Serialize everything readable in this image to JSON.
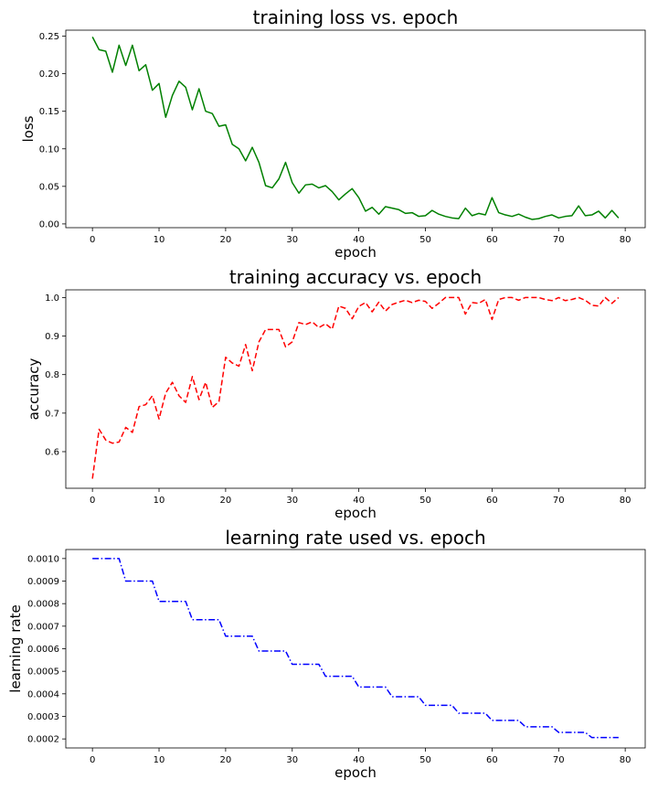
{
  "chart_data": [
    {
      "type": "line",
      "title": "training loss vs. epoch",
      "xlabel": "epoch",
      "ylabel": "loss",
      "color": "#008000",
      "linestyle": "solid",
      "xlim": [
        -4,
        83
      ],
      "ylim": [
        -0.005,
        0.258
      ],
      "xticks": [
        0,
        10,
        20,
        30,
        40,
        50,
        60,
        70,
        80
      ],
      "xtick_labels": [
        "0",
        "10",
        "20",
        "30",
        "40",
        "50",
        "60",
        "70",
        "80"
      ],
      "yticks": [
        0.0,
        0.05,
        0.1,
        0.15,
        0.2,
        0.25
      ],
      "ytick_labels": [
        "0.00",
        "0.05",
        "0.10",
        "0.15",
        "0.20",
        "0.25"
      ],
      "series": [
        {
          "name": "loss",
          "x": [
            0,
            1,
            2,
            3,
            4,
            5,
            6,
            7,
            8,
            9,
            10,
            11,
            12,
            13,
            14,
            15,
            16,
            17,
            18,
            19,
            20,
            21,
            22,
            23,
            24,
            25,
            26,
            27,
            28,
            29,
            30,
            31,
            32,
            33,
            34,
            35,
            36,
            37,
            38,
            39,
            40,
            41,
            42,
            43,
            44,
            45,
            46,
            47,
            48,
            49,
            50,
            51,
            52,
            53,
            54,
            55,
            56,
            57,
            58,
            59,
            60,
            61,
            62,
            63,
            64,
            65,
            66,
            67,
            68,
            69,
            70,
            71,
            72,
            73,
            74,
            75,
            76,
            77,
            78,
            79
          ],
          "values": [
            0.249,
            0.232,
            0.23,
            0.202,
            0.238,
            0.211,
            0.238,
            0.204,
            0.212,
            0.178,
            0.187,
            0.142,
            0.171,
            0.19,
            0.182,
            0.152,
            0.18,
            0.15,
            0.147,
            0.13,
            0.132,
            0.106,
            0.1,
            0.084,
            0.102,
            0.082,
            0.051,
            0.048,
            0.06,
            0.082,
            0.055,
            0.041,
            0.052,
            0.053,
            0.048,
            0.051,
            0.043,
            0.032,
            0.04,
            0.047,
            0.035,
            0.017,
            0.022,
            0.013,
            0.023,
            0.021,
            0.019,
            0.014,
            0.015,
            0.01,
            0.011,
            0.018,
            0.013,
            0.01,
            0.008,
            0.007,
            0.021,
            0.011,
            0.014,
            0.012,
            0.035,
            0.015,
            0.012,
            0.01,
            0.013,
            0.009,
            0.006,
            0.007,
            0.01,
            0.012,
            0.008,
            0.01,
            0.011,
            0.024,
            0.011,
            0.012,
            0.017,
            0.008,
            0.018,
            0.008
          ]
        }
      ]
    },
    {
      "type": "line",
      "title": "training accuracy vs. epoch",
      "xlabel": "epoch",
      "ylabel": "accuracy",
      "color": "#ff0000",
      "linestyle": "dashed",
      "xlim": [
        -4,
        83
      ],
      "ylim": [
        0.505,
        1.02
      ],
      "xticks": [
        0,
        10,
        20,
        30,
        40,
        50,
        60,
        70,
        80
      ],
      "xtick_labels": [
        "0",
        "10",
        "20",
        "30",
        "40",
        "50",
        "60",
        "70",
        "80"
      ],
      "yticks": [
        0.6,
        0.7,
        0.8,
        0.9,
        1.0
      ],
      "ytick_labels": [
        "0.6",
        "0.7",
        "0.8",
        "0.9",
        "1.0"
      ],
      "series": [
        {
          "name": "accuracy",
          "x": [
            0,
            1,
            2,
            3,
            4,
            5,
            6,
            7,
            8,
            9,
            10,
            11,
            12,
            13,
            14,
            15,
            16,
            17,
            18,
            19,
            20,
            21,
            22,
            23,
            24,
            25,
            26,
            27,
            28,
            29,
            30,
            31,
            32,
            33,
            34,
            35,
            36,
            37,
            38,
            39,
            40,
            41,
            42,
            43,
            44,
            45,
            46,
            47,
            48,
            49,
            50,
            51,
            52,
            53,
            54,
            55,
            56,
            57,
            58,
            59,
            60,
            61,
            62,
            63,
            64,
            65,
            66,
            67,
            68,
            69,
            70,
            71,
            72,
            73,
            74,
            75,
            76,
            77,
            78,
            79
          ],
          "values": [
            0.53,
            0.658,
            0.63,
            0.622,
            0.625,
            0.663,
            0.65,
            0.717,
            0.722,
            0.745,
            0.685,
            0.752,
            0.78,
            0.745,
            0.728,
            0.795,
            0.735,
            0.78,
            0.715,
            0.73,
            0.845,
            0.83,
            0.822,
            0.878,
            0.81,
            0.885,
            0.917,
            0.917,
            0.917,
            0.872,
            0.885,
            0.935,
            0.93,
            0.937,
            0.922,
            0.932,
            0.918,
            0.978,
            0.972,
            0.945,
            0.977,
            0.987,
            0.963,
            0.988,
            0.965,
            0.982,
            0.988,
            0.993,
            0.987,
            0.993,
            0.99,
            0.972,
            0.985,
            1.0,
            1.0,
            1.0,
            0.957,
            0.987,
            0.985,
            0.995,
            0.943,
            0.995,
            1.0,
            1.0,
            0.993,
            1.0,
            1.0,
            1.0,
            0.995,
            0.992,
            1.0,
            0.992,
            0.995,
            1.0,
            0.993,
            0.98,
            0.978,
            1.0,
            0.985,
            1.0
          ]
        }
      ]
    },
    {
      "type": "line",
      "title": "learning rate used vs. epoch",
      "xlabel": "epoch",
      "ylabel": "learning rate",
      "color": "#0000ff",
      "linestyle": "dashdot",
      "xlim": [
        -4,
        83
      ],
      "ylim": [
        0.00016,
        0.00104
      ],
      "xticks": [
        0,
        10,
        20,
        30,
        40,
        50,
        60,
        70,
        80
      ],
      "xtick_labels": [
        "0",
        "10",
        "20",
        "30",
        "40",
        "50",
        "60",
        "70",
        "80"
      ],
      "yticks": [
        0.0002,
        0.0003,
        0.0004,
        0.0005,
        0.0006,
        0.0007,
        0.0008,
        0.0009,
        0.001
      ],
      "ytick_labels": [
        "0.0002",
        "0.0003",
        "0.0004",
        "0.0005",
        "0.0006",
        "0.0007",
        "0.0008",
        "0.0009",
        "0.0010"
      ],
      "series": [
        {
          "name": "learning rate",
          "x": [
            0,
            1,
            2,
            3,
            4,
            5,
            6,
            7,
            8,
            9,
            10,
            11,
            12,
            13,
            14,
            15,
            16,
            17,
            18,
            19,
            20,
            21,
            22,
            23,
            24,
            25,
            26,
            27,
            28,
            29,
            30,
            31,
            32,
            33,
            34,
            35,
            36,
            37,
            38,
            39,
            40,
            41,
            42,
            43,
            44,
            45,
            46,
            47,
            48,
            49,
            50,
            51,
            52,
            53,
            54,
            55,
            56,
            57,
            58,
            59,
            60,
            61,
            62,
            63,
            64,
            65,
            66,
            67,
            68,
            69,
            70,
            71,
            72,
            73,
            74,
            75,
            76,
            77,
            78,
            79
          ],
          "values": [
            0.001,
            0.001,
            0.001,
            0.001,
            0.001,
            0.0009,
            0.0009,
            0.0009,
            0.0009,
            0.0009,
            0.00081,
            0.00081,
            0.00081,
            0.00081,
            0.00081,
            0.000729,
            0.000729,
            0.000729,
            0.000729,
            0.000729,
            0.000656,
            0.000656,
            0.000656,
            0.000656,
            0.000656,
            0.00059,
            0.00059,
            0.00059,
            0.00059,
            0.00059,
            0.000531,
            0.000531,
            0.000531,
            0.000531,
            0.000531,
            0.000478,
            0.000478,
            0.000478,
            0.000478,
            0.000478,
            0.00043,
            0.00043,
            0.00043,
            0.00043,
            0.00043,
            0.000387,
            0.000387,
            0.000387,
            0.000387,
            0.000387,
            0.000349,
            0.000349,
            0.000349,
            0.000349,
            0.000349,
            0.000314,
            0.000314,
            0.000314,
            0.000314,
            0.000314,
            0.000282,
            0.000282,
            0.000282,
            0.000282,
            0.000282,
            0.000254,
            0.000254,
            0.000254,
            0.000254,
            0.000254,
            0.000229,
            0.000229,
            0.000229,
            0.000229,
            0.000229,
            0.000206,
            0.000206,
            0.000206,
            0.000206,
            0.000206
          ]
        }
      ]
    }
  ]
}
